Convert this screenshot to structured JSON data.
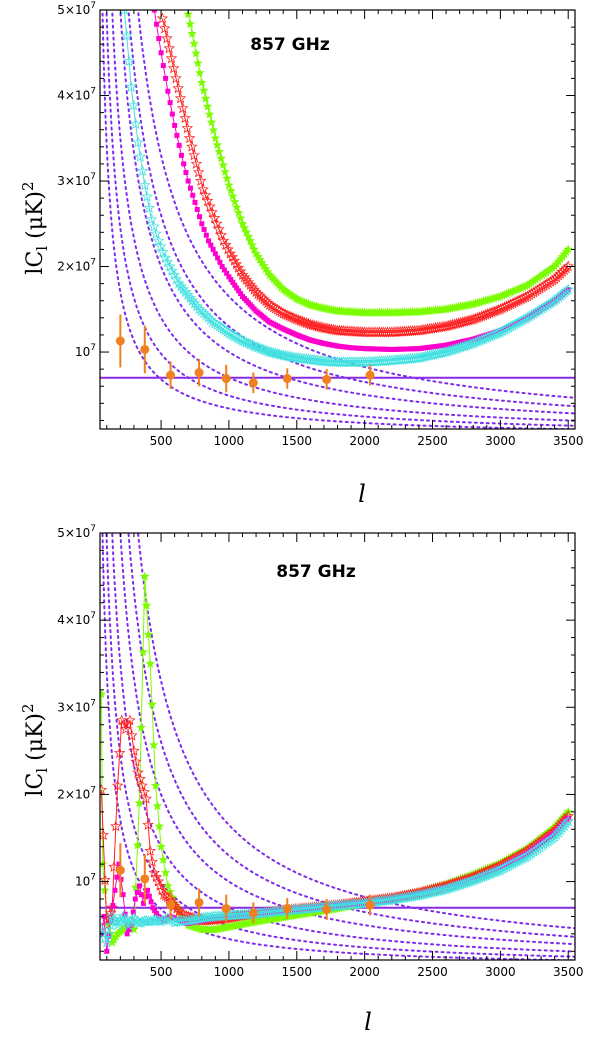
{
  "chart_data": [
    {
      "type": "line",
      "title": "857 GHz",
      "xlabel": "l",
      "ylabel": "lC_l (μK)^2",
      "xlim": [
        50,
        3550
      ],
      "ylim": [
        1000000,
        50000000
      ],
      "xticks": [
        500,
        1000,
        1500,
        2000,
        2500,
        3000,
        3500
      ],
      "xtick_labels": [
        "500",
        "1000",
        "1500",
        "2000",
        "2500",
        "3000",
        "3500"
      ],
      "yticks": [
        10000000,
        20000000,
        30000000,
        40000000,
        50000000
      ],
      "ytick_labels": [
        "10^7",
        "2×10^7",
        "3×10^7",
        "4×10^7",
        "5×10^7"
      ],
      "hline": {
        "y": 7000000,
        "color": "#8a2be2"
      },
      "series": [
        {
          "name": "green",
          "color": "#7cfc00",
          "marker": "star",
          "x": [
            700,
            800,
            900,
            1000,
            1100,
            1200,
            1300,
            1400,
            1500,
            1600,
            1700,
            1800,
            1900,
            2000,
            2200,
            2400,
            2600,
            2800,
            3000,
            3200,
            3400,
            3500
          ],
          "y": [
            49500000,
            41500000,
            35000000,
            29500000,
            25000000,
            21500000,
            19000000,
            17300000,
            16200000,
            15500000,
            15100000,
            14800000,
            14700000,
            14600000,
            14600000,
            14700000,
            15000000,
            15600000,
            16500000,
            17800000,
            20000000,
            22000000
          ]
        },
        {
          "name": "red",
          "color": "#ff2020",
          "marker": "open-star",
          "x": [
            510,
            560,
            610,
            660,
            710,
            760,
            810,
            860,
            910,
            960,
            1010,
            1100,
            1200,
            1300,
            1400,
            1500,
            1600,
            1700,
            1800,
            1900,
            2000,
            2200,
            2400,
            2600,
            2800,
            3000,
            3200,
            3400,
            3500
          ],
          "y": [
            49000000,
            45500000,
            42000000,
            38500000,
            35000000,
            32000000,
            29000000,
            27000000,
            25000000,
            23000000,
            21500000,
            19000000,
            17000000,
            15500000,
            14500000,
            13800000,
            13200000,
            12800000,
            12500000,
            12400000,
            12300000,
            12300000,
            12500000,
            13000000,
            13800000,
            15000000,
            16500000,
            18500000,
            20000000
          ]
        },
        {
          "name": "magenta",
          "color": "#ff00cc",
          "marker": "square",
          "x": [
            450,
            500,
            550,
            600,
            650,
            700,
            750,
            800,
            850,
            900,
            950,
            1000,
            1100,
            1200,
            1300,
            1400,
            1500,
            1600,
            1700,
            1800,
            1900,
            2000,
            2200,
            2400,
            2600,
            2800,
            3000,
            3200,
            3400,
            3500
          ],
          "y": [
            50000000,
            45000000,
            40500000,
            36500000,
            33000000,
            30000000,
            27500000,
            25000000,
            23000000,
            21500000,
            20000000,
            18800000,
            16500000,
            14800000,
            13500000,
            12700000,
            12000000,
            11400000,
            11000000,
            10700000,
            10500000,
            10400000,
            10300000,
            10400000,
            10800000,
            11500000,
            12500000,
            14000000,
            16000000,
            17300000
          ]
        },
        {
          "name": "cyan",
          "color": "#40e0e0",
          "marker": "open-star",
          "x": [
            230,
            280,
            330,
            380,
            430,
            480,
            530,
            580,
            630,
            680,
            730,
            780,
            830,
            880,
            930,
            1000,
            1100,
            1200,
            1300,
            1400,
            1500,
            1600,
            1700,
            1800,
            1900,
            2000,
            2200,
            2400,
            2600,
            2800,
            3000,
            3200,
            3400,
            3500
          ],
          "y": [
            50000000,
            41000000,
            34500000,
            29500000,
            25500000,
            23000000,
            21000000,
            19500000,
            18000000,
            17000000,
            16000000,
            15000000,
            14300000,
            13500000,
            13000000,
            12200000,
            11300000,
            10600000,
            10000000,
            9600000,
            9300000,
            9100000,
            8900000,
            8800000,
            8800000,
            8800000,
            9000000,
            9300000,
            10000000,
            11000000,
            12300000,
            14000000,
            16000000,
            17300000
          ]
        }
      ],
      "points": [
        {
          "name": "orange",
          "color": "#f08020",
          "x": [
            200,
            380,
            570,
            780,
            980,
            1180,
            1430,
            1720,
            2040
          ],
          "y": [
            11300000,
            10300000,
            7300000,
            7600000,
            6900000,
            6400000,
            6900000,
            6800000,
            7300000
          ],
          "err": [
            3100000,
            2800000,
            1600000,
            1600000,
            1600000,
            1200000,
            1200000,
            1200000,
            1200000
          ]
        }
      ],
      "dotted_curves": {
        "color": "#7d2bf0",
        "amplitudes": [
          3400000000,
          4900000000,
          7000000000,
          10000000000,
          13000000000,
          16500000000
        ]
      }
    },
    {
      "type": "line",
      "title": "857 GHz",
      "xlabel": "l",
      "ylabel": "lC_l (μK)^2",
      "xlim": [
        50,
        3550
      ],
      "ylim": [
        1000000,
        50000000
      ],
      "xticks": [
        500,
        1000,
        1500,
        2000,
        2500,
        3000,
        3500
      ],
      "xtick_labels": [
        "500",
        "1000",
        "1500",
        "2000",
        "2500",
        "3000",
        "3500"
      ],
      "yticks": [
        10000000,
        20000000,
        30000000,
        40000000,
        50000000
      ],
      "ytick_labels": [
        "10^7",
        "2×10^7",
        "3×10^7",
        "4×10^7",
        "5×10^7"
      ],
      "hline": {
        "y": 7000000,
        "color": "#8a2be2"
      },
      "series": [
        {
          "name": "green",
          "color": "#7cfc00",
          "marker": "star",
          "x": [
            60,
            70,
            100,
            140,
            180,
            220,
            260,
            300,
            340,
            380,
            420,
            460,
            500,
            550,
            600,
            650,
            700,
            800,
            900,
            1000,
            1100,
            1200,
            1400,
            1600,
            1800,
            2000,
            2200,
            2400,
            2600,
            2800,
            3000,
            3200,
            3400,
            3500
          ],
          "y": [
            31500000,
            12000000,
            6000000,
            3000000,
            4000000,
            4500000,
            5000000,
            4500000,
            19000000,
            45000000,
            35000000,
            21000000,
            14000000,
            9500000,
            7500000,
            6000000,
            5000000,
            4500000,
            4500000,
            4800000,
            5100000,
            5400000,
            5900000,
            6400000,
            6900000,
            7500000,
            8100000,
            8800000,
            9700000,
            10800000,
            12100000,
            13800000,
            16200000,
            18000000
          ]
        },
        {
          "name": "red",
          "color": "#ff2020",
          "marker": "open-star",
          "x": [
            60,
            100,
            140,
            180,
            210,
            240,
            270,
            300,
            330,
            360,
            390,
            420,
            450,
            480,
            520,
            560,
            600,
            650,
            700,
            800,
            900,
            1000,
            1100,
            1200,
            1400,
            1600,
            1800,
            2000,
            2200,
            2400,
            2600,
            2800,
            3000,
            3200,
            3400,
            3500
          ],
          "y": [
            20500000,
            5000000,
            7000000,
            21000000,
            28500000,
            27500000,
            28500000,
            25000000,
            22500000,
            21000000,
            19500000,
            13500000,
            11000000,
            10000000,
            8500000,
            8000000,
            7200000,
            6300000,
            6000000,
            5500000,
            5600000,
            5800000,
            6100000,
            6300000,
            6700000,
            7000000,
            7300000,
            7700000,
            8100000,
            8700000,
            9500000,
            10500000,
            11800000,
            13500000,
            15800000,
            17500000
          ]
        },
        {
          "name": "magenta",
          "color": "#ff00cc",
          "marker": "square",
          "x": [
            60,
            80,
            100,
            130,
            160,
            190,
            220,
            250,
            280,
            310,
            340,
            370,
            400,
            440,
            480,
            520,
            560,
            600,
            650,
            700,
            800,
            900,
            1000,
            1100,
            1200,
            1400,
            1600,
            1800,
            2000,
            2200,
            2400,
            2600,
            2800,
            3000,
            3200,
            3400,
            3500
          ],
          "y": [
            4000000,
            6000000,
            2000000,
            5500000,
            9000000,
            12000000,
            8500000,
            4000000,
            5000000,
            8000000,
            9500000,
            7500000,
            9000000,
            7000000,
            6000000,
            5500000,
            6000000,
            5800000,
            5400000,
            5200000,
            5500000,
            5800000,
            6000000,
            6200000,
            6400000,
            6700000,
            7000000,
            7300000,
            7600000,
            8000000,
            8600000,
            9300000,
            10300000,
            11600000,
            13300000,
            15600000,
            17300000
          ]
        },
        {
          "name": "cyan",
          "color": "#40e0e0",
          "marker": "open-star",
          "x": [
            60,
            100,
            140,
            180,
            220,
            260,
            300,
            340,
            380,
            420,
            460,
            500,
            550,
            600,
            650,
            700,
            800,
            900,
            1000,
            1100,
            1200,
            1400,
            1600,
            1800,
            2000,
            2200,
            2400,
            2600,
            2800,
            3000,
            3200,
            3400,
            3500
          ],
          "y": [
            4500000,
            3000000,
            6000000,
            5000000,
            6000000,
            5000000,
            5800000,
            5200000,
            5500000,
            5400000,
            5600000,
            5400000,
            5800000,
            5300000,
            5500000,
            5500000,
            5800000,
            6000000,
            6100000,
            6200000,
            6300000,
            6600000,
            6900000,
            7200000,
            7500000,
            7900000,
            8400000,
            9100000,
            10100000,
            11300000,
            12900000,
            15100000,
            16900000
          ]
        }
      ],
      "points": [
        {
          "name": "orange",
          "color": "#f08020",
          "x": [
            200,
            380,
            570,
            780,
            980,
            1180,
            1430,
            1720,
            2040
          ],
          "y": [
            11300000,
            10300000,
            7300000,
            7600000,
            6900000,
            6400000,
            6900000,
            6800000,
            7300000
          ],
          "err": [
            3100000,
            2800000,
            1600000,
            1600000,
            1600000,
            1200000,
            1200000,
            1200000,
            1200000
          ]
        }
      ],
      "dotted_curves": {
        "color": "#7d2bf0",
        "amplitudes": [
          3400000000,
          4900000000,
          7000000000,
          10000000000,
          13000000000,
          16500000000
        ]
      }
    }
  ]
}
